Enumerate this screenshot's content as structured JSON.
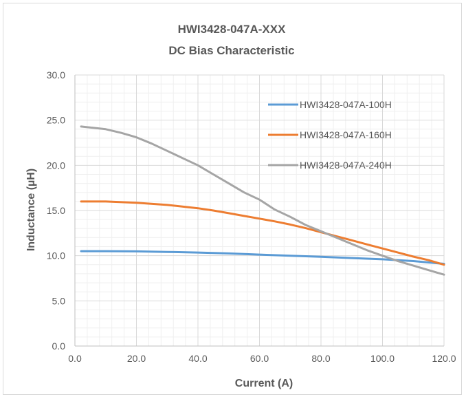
{
  "chart_data": {
    "type": "line",
    "title": "HWI3428-047A-XXX",
    "subtitle": "DC Bias Characteristic",
    "xlabel": "Current (A)",
    "ylabel": "Inductance (µH)",
    "xlim": [
      0,
      120
    ],
    "ylim": [
      0,
      30
    ],
    "x_ticks": [
      "0.0",
      "20.0",
      "40.0",
      "60.0",
      "80.0",
      "100.0",
      "120.0"
    ],
    "y_ticks": [
      "0.0",
      "5.0",
      "10.0",
      "15.0",
      "20.0",
      "25.0",
      "30.0"
    ],
    "grid": true,
    "legend_position": "top-right inside plot",
    "series": [
      {
        "name": "HWI3428-047A-100H",
        "color": "#5b9bd5",
        "x": [
          2,
          10,
          20,
          30,
          40,
          50,
          60,
          70,
          80,
          90,
          100,
          110,
          120
        ],
        "y": [
          10.5,
          10.5,
          10.48,
          10.42,
          10.35,
          10.25,
          10.12,
          10.0,
          9.88,
          9.74,
          9.6,
          9.4,
          9.1
        ]
      },
      {
        "name": "HWI3428-047A-160H",
        "color": "#ed7d31",
        "x": [
          2,
          10,
          20,
          30,
          40,
          45,
          50,
          55,
          60,
          65,
          70,
          75,
          80,
          85,
          90,
          95,
          100,
          105,
          110,
          115,
          120
        ],
        "y": [
          16.0,
          16.0,
          15.85,
          15.62,
          15.25,
          15.0,
          14.7,
          14.4,
          14.1,
          13.8,
          13.45,
          13.05,
          12.6,
          12.15,
          11.7,
          11.25,
          10.8,
          10.35,
          9.9,
          9.5,
          9.0
        ]
      },
      {
        "name": "HWI3428-047A-240H",
        "color": "#a5a5a5",
        "x": [
          2,
          10,
          15,
          20,
          25,
          30,
          35,
          40,
          45,
          50,
          55,
          60,
          65,
          70,
          75,
          80,
          85,
          90,
          95,
          100,
          105,
          110,
          115,
          120
        ],
        "y": [
          24.3,
          24.0,
          23.6,
          23.1,
          22.4,
          21.6,
          20.8,
          20.0,
          19.0,
          18.0,
          17.0,
          16.2,
          15.1,
          14.3,
          13.4,
          12.7,
          12.0,
          11.3,
          10.6,
          10.0,
          9.4,
          8.9,
          8.4,
          7.9
        ]
      }
    ]
  }
}
